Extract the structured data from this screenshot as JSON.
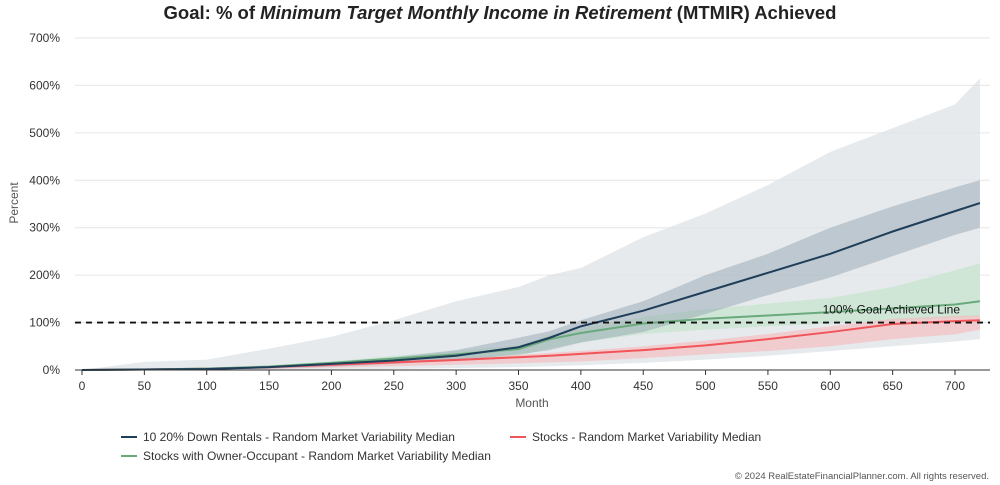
{
  "title": {
    "prefix": "Goal: % of ",
    "emphasis": "Minimum Target Monthly Income in Retirement",
    "suffix": " (MTMIR) Achieved"
  },
  "copyright": "© 2024 RealEstateFinancialPlanner.com. All rights reserved.",
  "chart_data": {
    "type": "line",
    "xlabel": "Month",
    "ylabel": "Percent",
    "xlim": [
      0,
      720
    ],
    "ylim": [
      0,
      700
    ],
    "x_ticks": [
      0,
      50,
      100,
      150,
      200,
      250,
      300,
      350,
      400,
      450,
      500,
      550,
      600,
      650,
      700
    ],
    "y_ticks": [
      "0%",
      "100%",
      "200%",
      "300%",
      "400%",
      "500%",
      "600%",
      "700%"
    ],
    "grid": "horizontal",
    "legend_position": "bottom",
    "x": [
      0,
      50,
      100,
      150,
      200,
      250,
      300,
      350,
      375,
      400,
      450,
      500,
      550,
      600,
      650,
      700,
      720
    ],
    "series": [
      {
        "name": "10 20% Down Rentals - Random Market Variability Median",
        "color": "#1f3e5a",
        "values": [
          0,
          1,
          2,
          6,
          13,
          20,
          30,
          48,
          68,
          92,
          125,
          165,
          205,
          245,
          292,
          335,
          352
        ],
        "inner_band_low": [
          0,
          0,
          1,
          3,
          7,
          13,
          20,
          33,
          42,
          58,
          80,
          118,
          158,
          195,
          240,
          285,
          300
        ],
        "inner_band_high": [
          0,
          1,
          3,
          8,
          17,
          27,
          42,
          68,
          82,
          105,
          145,
          200,
          245,
          300,
          345,
          385,
          400
        ],
        "outer_band_low": [
          0,
          0,
          0,
          0,
          1,
          2,
          4,
          6,
          8,
          10,
          15,
          22,
          30,
          40,
          50,
          60,
          65
        ],
        "outer_band_high": [
          0,
          17,
          22,
          45,
          70,
          105,
          145,
          175,
          200,
          215,
          280,
          330,
          390,
          460,
          510,
          560,
          615
        ]
      },
      {
        "name": "Stocks - Random Market Variability Median",
        "color": "#f1555a",
        "values": [
          0,
          1,
          3,
          6,
          11,
          16,
          21,
          27,
          30,
          34,
          42,
          52,
          65,
          80,
          97,
          103,
          105
        ],
        "band_low": [
          0,
          0,
          1,
          2,
          5,
          8,
          11,
          14,
          16,
          18,
          25,
          33,
          40,
          50,
          65,
          75,
          85
        ],
        "band_high": [
          0,
          2,
          4,
          8,
          14,
          20,
          25,
          32,
          36,
          40,
          50,
          62,
          76,
          92,
          108,
          114,
          115
        ]
      },
      {
        "name": "Stocks with Owner-Occupant - Random Market Variability Median",
        "color": "#6aa97c",
        "values": [
          0,
          1,
          3,
          7,
          15,
          24,
          33,
          44,
          65,
          78,
          98,
          108,
          115,
          122,
          130,
          138,
          145
        ],
        "band_low": [
          0,
          0,
          1,
          4,
          10,
          15,
          21,
          29,
          46,
          58,
          76,
          85,
          92,
          98,
          104,
          110,
          112
        ],
        "band_high": [
          0,
          2,
          5,
          10,
          18,
          30,
          40,
          52,
          74,
          88,
          112,
          128,
          140,
          152,
          175,
          210,
          225
        ]
      }
    ],
    "reference_line": {
      "y": 100,
      "label": "100% Goal Achieved Line",
      "style": "dashed",
      "color": "#111111"
    }
  }
}
